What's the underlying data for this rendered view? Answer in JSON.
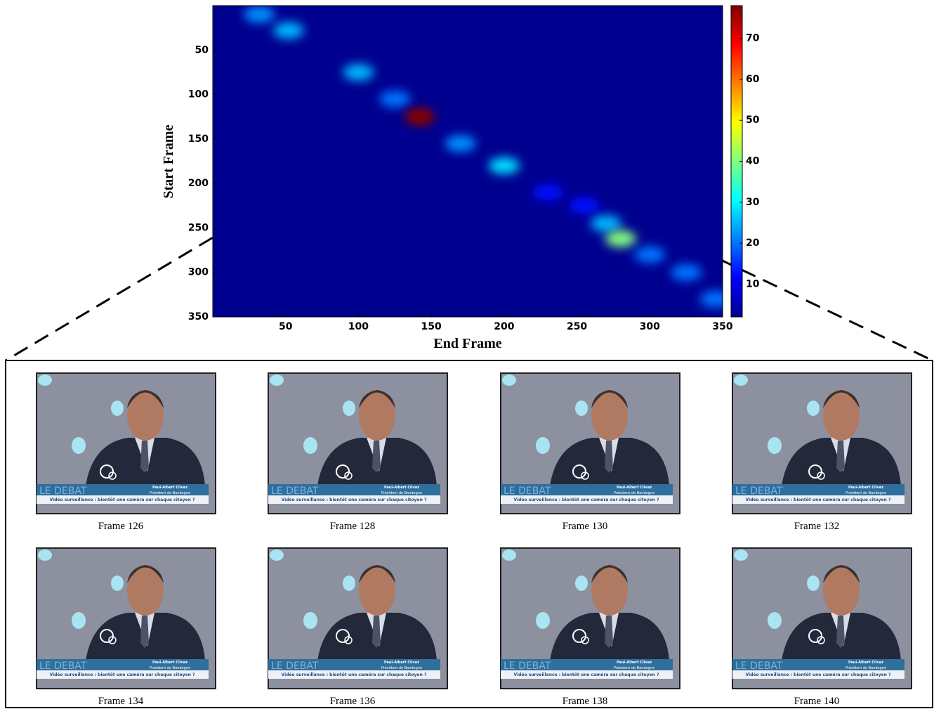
{
  "chart_data": {
    "type": "heatmap",
    "xlabel": "End Frame",
    "ylabel": "Start Frame",
    "x": [
      32,
      52,
      100,
      125,
      142,
      170,
      200,
      230,
      255,
      270,
      280,
      300,
      325,
      345
    ],
    "y": [
      10,
      28,
      75,
      105,
      125,
      155,
      180,
      210,
      225,
      245,
      262,
      280,
      300,
      330
    ],
    "values": [
      22,
      25,
      25,
      20,
      78,
      22,
      28,
      12,
      12,
      25,
      40,
      20,
      20,
      20
    ],
    "xlim": [
      0,
      350
    ],
    "xticks": [
      50,
      100,
      150,
      200,
      250,
      300,
      350
    ],
    "ylim": [
      0,
      350
    ],
    "yticks": [
      50,
      100,
      150,
      200,
      250,
      300,
      350
    ],
    "clim": [
      2,
      78
    ],
    "cticks": [
      10,
      20,
      30,
      40,
      50,
      60,
      70
    ],
    "colormap": "jet",
    "background": "#00008f"
  },
  "frames": {
    "labels": [
      "Frame 126",
      "Frame 128",
      "Frame 130",
      "Frame 132",
      "Frame 134",
      "Frame 136",
      "Frame 138",
      "Frame 140"
    ],
    "banner": "LE DEBAT",
    "name": "Paul-Albert Clivaz",
    "role": "Président de Bandogne",
    "caption": "Vidéo surveillance : bientôt une caméra sur chaque citoyen ?"
  }
}
